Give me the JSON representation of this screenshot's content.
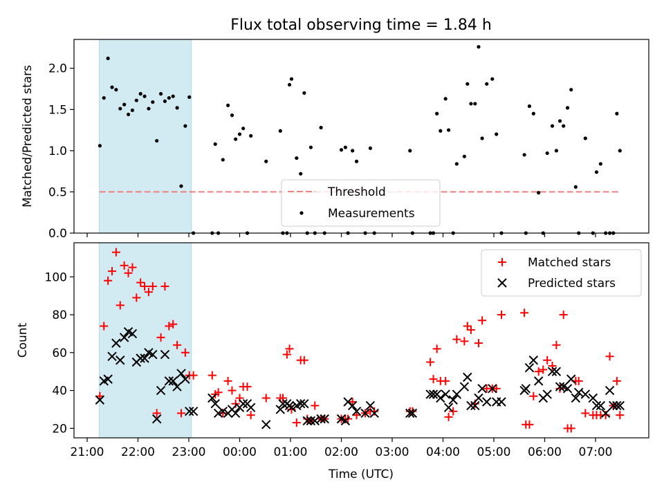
{
  "title": "Flux total observing time = 1.84 h",
  "x_axis": {
    "label": "Time (UTC)",
    "ticks": [
      "21:00",
      "22:00",
      "23:00",
      "00:00",
      "01:00",
      "02:00",
      "03:00",
      "04:00",
      "05:00",
      "06:00",
      "07:00"
    ]
  },
  "colors": {
    "matched": "#ff0000",
    "predicted": "#000000",
    "threshold": "#f08080",
    "shade": "#add8e6"
  },
  "chart_data": [
    {
      "type": "scatter",
      "ylabel": "Matched/Predicted stars",
      "ylim": [
        0,
        2.35
      ],
      "yticks": [
        "0.0",
        "0.5",
        "1.0",
        "1.5",
        "2.0"
      ],
      "shaded_span_hours": [
        21.24,
        23.05
      ],
      "threshold": {
        "name": "Threshold",
        "value": 0.5,
        "x_range": [
          21.24,
          31.5
        ],
        "style": "dashed"
      },
      "legend": {
        "position": "lower-center",
        "entries": [
          "Threshold",
          "Measurements"
        ]
      },
      "series": [
        {
          "name": "Measurements",
          "x": [
            21.25,
            21.33,
            21.41,
            21.49,
            21.57,
            21.65,
            21.73,
            21.81,
            21.89,
            21.97,
            22.05,
            22.13,
            22.21,
            22.29,
            22.37,
            22.45,
            22.53,
            22.61,
            22.69,
            22.77,
            22.85,
            22.93,
            23.01,
            23.09,
            23.46,
            23.52,
            23.58,
            23.67,
            23.77,
            23.85,
            23.92,
            24.0,
            24.07,
            24.15,
            24.22,
            24.52,
            24.8,
            24.85,
            24.93,
            24.98,
            25.02,
            25.12,
            25.2,
            25.27,
            25.33,
            25.4,
            25.48,
            25.6,
            25.67,
            26.0,
            26.08,
            26.13,
            26.22,
            26.3,
            26.47,
            26.57,
            26.65,
            27.35,
            27.4,
            27.75,
            27.81,
            27.88,
            27.95,
            28.05,
            28.11,
            28.2,
            28.27,
            28.42,
            28.48,
            28.55,
            28.63,
            28.7,
            28.77,
            28.86,
            28.97,
            29.05,
            29.15,
            29.6,
            29.63,
            29.7,
            29.78,
            29.88,
            29.97,
            30.05,
            30.15,
            30.23,
            30.3,
            30.37,
            30.45,
            30.52,
            30.61,
            30.67,
            30.8,
            30.95,
            31.02,
            31.1,
            31.2,
            31.28,
            31.35,
            31.42,
            31.48
          ],
          "y": [
            1.06,
            1.64,
            2.12,
            1.77,
            1.74,
            1.51,
            1.56,
            1.44,
            1.49,
            1.61,
            1.69,
            1.66,
            1.51,
            1.59,
            1.12,
            1.69,
            1.6,
            1.64,
            1.66,
            1.52,
            0.57,
            1.3,
            1.65,
            0.0,
            0.0,
            1.08,
            0.0,
            0.89,
            1.55,
            1.43,
            1.14,
            1.2,
            1.27,
            0.0,
            1.18,
            0.87,
            1.24,
            0.0,
            0.0,
            1.8,
            1.87,
            0.91,
            0.72,
            1.7,
            0.0,
            1.04,
            0.0,
            1.28,
            0.0,
            1.01,
            1.04,
            0.0,
            1.0,
            0.87,
            0.0,
            1.03,
            0.0,
            1.0,
            0.0,
            0.0,
            0.0,
            1.45,
            1.24,
            1.63,
            1.25,
            0.0,
            0.84,
            0.93,
            1.81,
            1.57,
            1.57,
            2.26,
            1.15,
            1.81,
            1.87,
            1.2,
            0.0,
            0.95,
            0.0,
            1.54,
            1.45,
            0.49,
            0.0,
            0.97,
            1.3,
            1.0,
            1.36,
            1.3,
            1.52,
            1.74,
            0.56,
            0.0,
            1.15,
            0.0,
            0.74,
            0.84,
            0.0,
            0.0,
            0.0,
            1.45,
            1.0
          ]
        }
      ]
    },
    {
      "type": "scatter",
      "ylabel": "Count",
      "ylim": [
        15,
        118
      ],
      "yticks": [
        "20",
        "40",
        "60",
        "80",
        "100"
      ],
      "shaded_span_hours": [
        21.24,
        23.05
      ],
      "legend": {
        "position": "top-right",
        "entries": [
          "Matched stars",
          "Predicted stars"
        ]
      },
      "series": [
        {
          "name": "Matched stars",
          "marker": "plus",
          "x": [
            21.25,
            21.33,
            21.41,
            21.49,
            21.57,
            21.65,
            21.73,
            21.81,
            21.89,
            21.97,
            22.05,
            22.13,
            22.21,
            22.29,
            22.37,
            22.45,
            22.53,
            22.61,
            22.69,
            22.77,
            22.85,
            22.93,
            23.01,
            23.09,
            23.46,
            23.52,
            23.58,
            23.67,
            23.77,
            23.85,
            23.92,
            24.0,
            24.07,
            24.15,
            24.22,
            24.52,
            24.8,
            24.85,
            24.93,
            24.98,
            25.02,
            25.12,
            25.2,
            25.27,
            25.33,
            25.4,
            25.48,
            25.6,
            25.67,
            26.0,
            26.08,
            26.13,
            26.22,
            26.3,
            26.47,
            26.57,
            26.65,
            27.35,
            27.4,
            27.75,
            27.81,
            27.88,
            27.95,
            28.05,
            28.11,
            28.2,
            28.27,
            28.42,
            28.48,
            28.55,
            28.63,
            28.7,
            28.77,
            28.86,
            28.97,
            29.05,
            29.15,
            29.6,
            29.63,
            29.7,
            29.78,
            29.88,
            29.97,
            30.05,
            30.15,
            30.23,
            30.3,
            30.37,
            30.45,
            30.52,
            30.61,
            30.67,
            30.8,
            30.95,
            31.02,
            31.1,
            31.2,
            31.28,
            31.35,
            31.42,
            31.48
          ],
          "y": [
            37,
            74,
            98,
            103,
            113,
            85,
            106,
            102,
            105,
            89,
            97,
            95,
            92,
            95,
            28,
            68,
            95,
            74,
            75,
            64,
            28,
            60,
            48,
            48,
            48,
            38,
            39,
            28,
            45,
            40,
            33,
            36,
            42,
            42,
            27,
            36,
            36,
            36,
            59,
            62,
            30,
            23,
            56,
            56,
            25,
            24,
            32,
            25,
            25,
            25,
            25,
            25,
            34,
            27,
            28,
            29,
            29,
            29,
            29,
            55,
            46,
            62,
            45,
            45,
            26,
            29,
            67,
            66,
            74,
            72,
            33,
            65,
            77,
            41,
            41,
            41,
            80,
            81,
            22,
            22,
            37,
            50,
            51,
            56,
            53,
            64,
            41,
            80,
            20,
            20,
            45,
            45,
            28,
            27,
            27,
            27,
            27,
            58,
            32,
            45,
            27
          ],
          "color": "#ff0000"
        },
        {
          "name": "Predicted stars",
          "marker": "x",
          "x": [
            21.25,
            21.33,
            21.41,
            21.49,
            21.57,
            21.65,
            21.73,
            21.81,
            21.89,
            21.97,
            22.05,
            22.13,
            22.21,
            22.29,
            22.37,
            22.45,
            22.53,
            22.61,
            22.69,
            22.77,
            22.85,
            22.93,
            23.01,
            23.09,
            23.46,
            23.52,
            23.58,
            23.67,
            23.77,
            23.85,
            23.92,
            24.0,
            24.07,
            24.15,
            24.22,
            24.52,
            24.8,
            24.85,
            24.93,
            24.98,
            25.02,
            25.12,
            25.2,
            25.27,
            25.33,
            25.4,
            25.48,
            25.6,
            25.67,
            26.0,
            26.08,
            26.13,
            26.22,
            26.3,
            26.47,
            26.57,
            26.65,
            27.35,
            27.4,
            27.75,
            27.81,
            27.88,
            27.95,
            28.05,
            28.11,
            28.2,
            28.27,
            28.42,
            28.48,
            28.55,
            28.63,
            28.7,
            28.77,
            28.86,
            28.97,
            29.05,
            29.15,
            29.6,
            29.63,
            29.7,
            29.78,
            29.88,
            29.97,
            30.05,
            30.15,
            30.23,
            30.3,
            30.37,
            30.45,
            30.52,
            30.61,
            30.67,
            30.8,
            30.95,
            31.02,
            31.1,
            31.2,
            31.28,
            31.35,
            31.42,
            31.48
          ],
          "y": [
            35,
            45,
            46,
            58,
            65,
            56,
            68,
            71,
            70,
            55,
            57,
            57,
            60,
            59,
            25,
            40,
            59,
            45,
            45,
            42,
            49,
            46,
            29,
            29,
            36,
            33,
            28,
            29,
            28,
            30,
            28,
            31,
            33,
            33,
            31,
            22,
            30,
            33,
            33,
            32,
            31,
            32,
            33,
            33,
            24,
            24,
            24,
            25,
            25,
            25,
            24,
            34,
            32,
            29,
            28,
            32,
            28,
            28,
            28,
            38,
            38,
            38,
            36,
            38,
            31,
            35,
            38,
            42,
            47,
            32,
            32,
            36,
            41,
            34,
            41,
            34,
            34,
            40,
            41,
            52,
            56,
            45,
            36,
            38,
            50,
            50,
            42,
            42,
            41,
            46,
            36,
            39,
            38,
            36,
            32,
            32,
            28,
            40,
            32,
            32,
            32
          ],
          "color": "#000000"
        }
      ]
    }
  ]
}
